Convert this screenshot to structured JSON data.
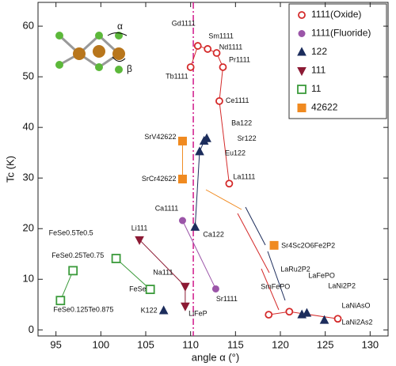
{
  "chart_data": {
    "type": "scatter",
    "xlabel": "angle α (°)",
    "ylabel": "Tc (K)",
    "xlim": [
      93,
      132
    ],
    "ylim": [
      -1.2,
      64.7
    ],
    "xticks": [
      95,
      100,
      105,
      110,
      115,
      120,
      125,
      130
    ],
    "yticks": [
      0,
      10,
      20,
      30,
      40,
      50,
      60
    ],
    "vline": 110.3,
    "vline_color": "#d0188a",
    "legend": "top-right",
    "inset_labels": [
      "α",
      "β"
    ],
    "series": [
      {
        "name": "1111(Oxide)",
        "color": "#d42a2a",
        "marker": "circle-open",
        "labels": [
          "Tb1111",
          "Gd1111",
          "Sm1111",
          "Nd1111",
          "Pr1111",
          "Ce1111",
          "La1111",
          "SmFePO",
          "LaFePO",
          "LaNiAsO"
        ],
        "x": [
          110.0,
          110.8,
          111.9,
          112.9,
          113.6,
          113.2,
          114.3,
          118.7,
          121.0,
          126.4
        ],
        "values": [
          51.9,
          56.1,
          55.5,
          54.7,
          51.9,
          45.2,
          28.9,
          3.0,
          3.6,
          2.2
        ]
      },
      {
        "name": "1111(Fluoride)",
        "color": "#9b55a8",
        "marker": "circle",
        "labels": [
          "Ca1111",
          "Sr1111"
        ],
        "x": [
          109.1,
          112.8
        ],
        "values": [
          21.6,
          8.1
        ]
      },
      {
        "name": "122",
        "color": "#1c2d5c",
        "marker": "triangle-up",
        "labels": [
          "Ba122",
          "Sr122",
          "Eu122",
          "Ca122",
          "K122",
          "LaRu2P2",
          "LaNi2P2",
          "LaNi2As2"
        ],
        "x": [
          111.8,
          111.5,
          111.0,
          110.5,
          107.0,
          122.4,
          122.95,
          124.9
        ],
        "values": [
          37.8,
          37.3,
          35.2,
          20.3,
          3.8,
          3.0,
          3.3,
          1.9
        ]
      },
      {
        "name": "111",
        "color": "#8c1a34",
        "marker": "triangle-down",
        "labels": [
          "Li111",
          "Na111",
          "LiFeP"
        ],
        "x": [
          104.3,
          109.4,
          109.4
        ],
        "values": [
          17.8,
          8.6,
          4.7
        ]
      },
      {
        "name": "11",
        "color": "#3a9a3a",
        "marker": "square-open",
        "labels": [
          "FeSe0.125Te0.875",
          "FeSe0.25Te0.75",
          "FeSe0.5Te0.5",
          "FeSe"
        ],
        "x": [
          95.5,
          96.9,
          101.7,
          105.5
        ],
        "values": [
          5.8,
          11.7,
          14.1,
          8.0
        ]
      },
      {
        "name": "42622",
        "color": "#f08a20",
        "marker": "square",
        "labels": [
          "SrV42622",
          "SrCr42622",
          "Sr4Sc2O6Fe2P2"
        ],
        "x": [
          109.1,
          109.1,
          119.3
        ],
        "values": [
          37.3,
          29.8,
          16.7
        ]
      }
    ]
  }
}
